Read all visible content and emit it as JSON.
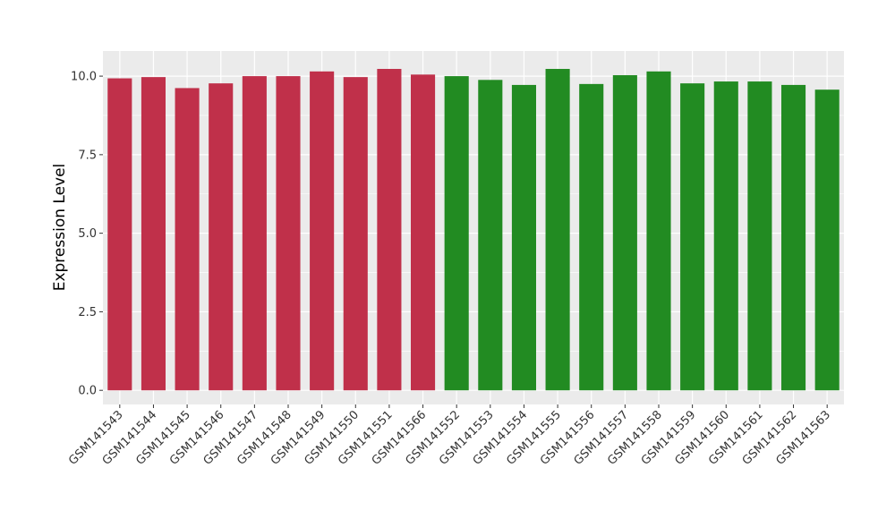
{
  "chart_data": {
    "type": "bar",
    "ylabel": "Expression Level",
    "xlabel": "",
    "title": "",
    "ylim": [
      -0.45,
      10.8
    ],
    "yticks": [
      0.0,
      2.5,
      5.0,
      7.5,
      10.0
    ],
    "ytick_labels": [
      "0.0",
      "2.5",
      "5.0",
      "7.5",
      "10.0"
    ],
    "grid": true,
    "panel_color": "#EBEBEB",
    "grid_color": "#FFFFFF",
    "categories": [
      "GSM141543",
      "GSM141544",
      "GSM141545",
      "GSM141546",
      "GSM141547",
      "GSM141548",
      "GSM141549",
      "GSM141550",
      "GSM141551",
      "GSM141566",
      "GSM141552",
      "GSM141553",
      "GSM141554",
      "GSM141555",
      "GSM141556",
      "GSM141557",
      "GSM141558",
      "GSM141559",
      "GSM141560",
      "GSM141561",
      "GSM141562",
      "GSM141563"
    ],
    "values": [
      9.93,
      9.97,
      9.62,
      9.77,
      10.0,
      10.0,
      10.15,
      9.97,
      10.23,
      10.05,
      10.0,
      9.88,
      9.72,
      10.23,
      9.75,
      10.03,
      10.15,
      9.77,
      9.83,
      9.83,
      9.72,
      9.57
    ],
    "colors": [
      "#C0304A",
      "#C0304A",
      "#C0304A",
      "#C0304A",
      "#C0304A",
      "#C0304A",
      "#C0304A",
      "#C0304A",
      "#C0304A",
      "#C0304A",
      "#228B22",
      "#228B22",
      "#228B22",
      "#228B22",
      "#228B22",
      "#228B22",
      "#228B22",
      "#228B22",
      "#228B22",
      "#228B22",
      "#228B22",
      "#228B22"
    ]
  }
}
